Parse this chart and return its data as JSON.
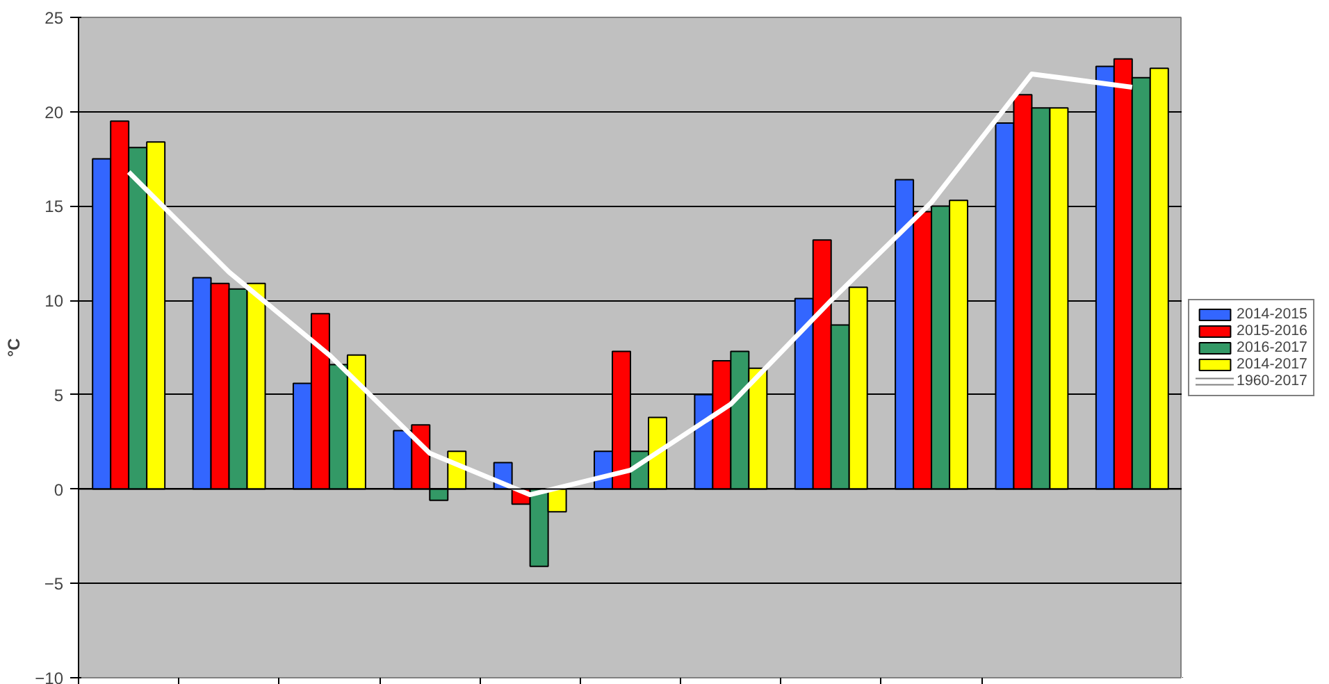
{
  "chart_data": {
    "type": "bar",
    "ylabel": "°C",
    "categories": [
      null,
      null,
      null,
      null,
      null,
      null,
      null,
      null,
      null,
      null,
      null
    ],
    "series": [
      {
        "name": "2014-2015",
        "color": "#3366ff",
        "values": [
          17.5,
          11.2,
          5.6,
          3.1,
          1.4,
          2.0,
          5.0,
          10.1,
          16.4,
          19.4,
          22.4
        ]
      },
      {
        "name": "2015-2016",
        "color": "#ff0000",
        "values": [
          19.5,
          10.9,
          9.3,
          3.4,
          -0.8,
          7.3,
          6.8,
          13.2,
          14.7,
          20.9,
          22.8
        ]
      },
      {
        "name": "2016-2017",
        "color": "#339966",
        "values": [
          18.1,
          10.6,
          6.6,
          -0.6,
          -4.1,
          2.0,
          7.3,
          8.7,
          15.0,
          20.2,
          21.8
        ]
      },
      {
        "name": "2014-2017",
        "color": "#ffff00",
        "values": [
          18.4,
          10.9,
          7.1,
          2.0,
          -1.2,
          3.8,
          6.4,
          10.7,
          15.3,
          20.2,
          22.3
        ]
      },
      {
        "name": "1960-2017",
        "type": "line",
        "color": "#ffffff",
        "values": [
          16.8,
          11.5,
          7.1,
          1.9,
          -0.3,
          1.0,
          4.5,
          10.0,
          15.2,
          22.0,
          21.3
        ]
      }
    ],
    "ylim": [
      -10,
      25
    ],
    "yticks": [
      -10,
      -5,
      0,
      5,
      10,
      15,
      20,
      25
    ],
    "grid": "y",
    "legend": "right",
    "tick_labels": "y"
  }
}
